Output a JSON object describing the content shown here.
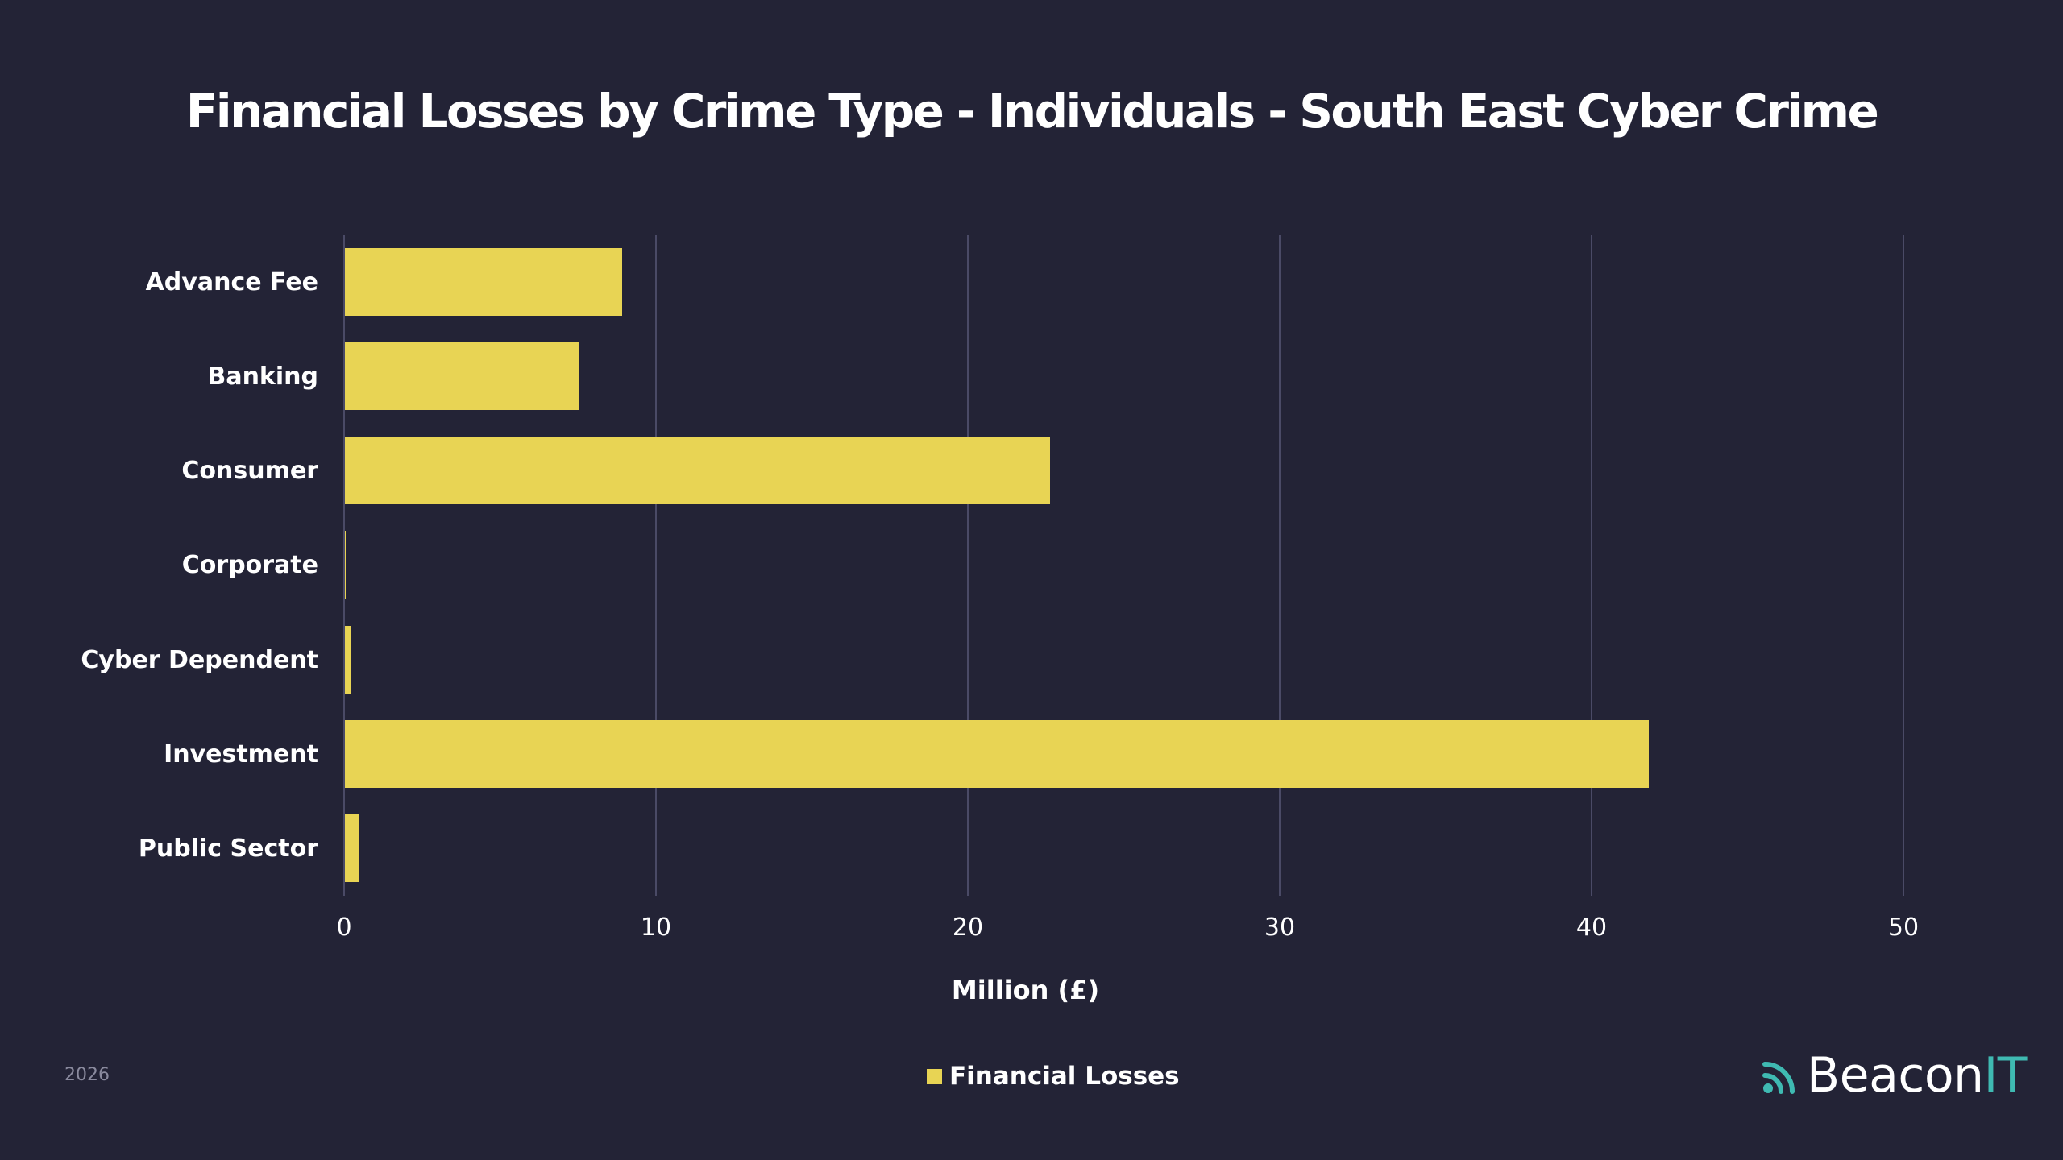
{
  "title": "Financial Losses by Crime Type - Individuals - South East Cyber Crime",
  "colors": {
    "background": "#232336",
    "bar": "#e8d454",
    "grid": "#4a4a66",
    "logo_accent": "#3fbab2",
    "footnote": "#8a8a9e"
  },
  "footer": {
    "year": "2026"
  },
  "legend": {
    "label": "Financial Losses"
  },
  "logo": {
    "icon": "signal-waves-icon",
    "main": "Beacon",
    "accent": "IT"
  },
  "axis": {
    "xlabel": "Million (£)",
    "ticks": [
      "0",
      "10",
      "20",
      "30",
      "40",
      "50"
    ]
  },
  "chart_data": {
    "type": "bar",
    "orientation": "horizontal",
    "title": "Financial Losses by Crime Type - Individuals - South East Cyber Crime",
    "categories": [
      "Advance Fee",
      "Banking",
      "Consumer",
      "Corporate",
      "Cyber Dependent",
      "Investment",
      "Public Sector"
    ],
    "series": [
      {
        "name": "Financial Losses",
        "values": [
          8.9,
          7.5,
          22.6,
          0.02,
          0.2,
          41.8,
          0.45
        ]
      }
    ],
    "xlabel": "Million (£)",
    "ylabel": "",
    "xlim": [
      0,
      50
    ],
    "xticks": [
      0,
      10,
      20,
      30,
      40,
      50
    ],
    "grid": true,
    "legend_position": "bottom"
  }
}
